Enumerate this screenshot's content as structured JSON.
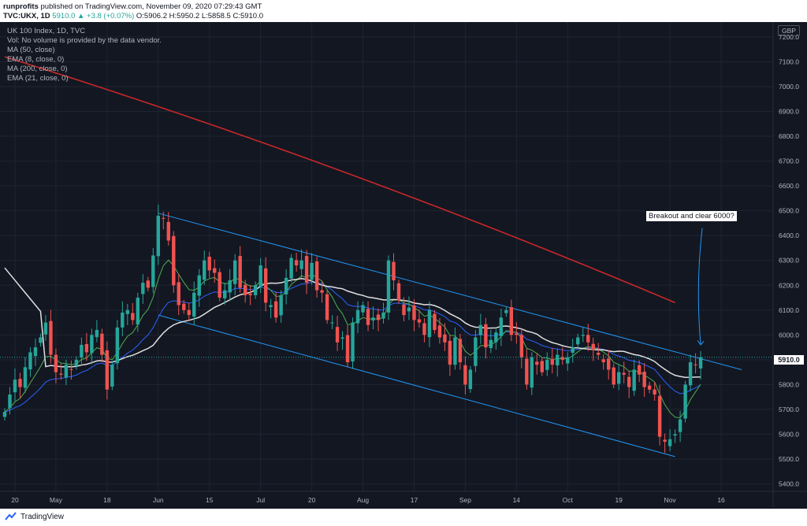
{
  "header": {
    "publisher": "runprofits",
    "published_text": "published on TradingView.com, November 09, 2020 07:29:43 GMT",
    "symbol_line": "TVC:UKX, 1D",
    "last": "5910.0",
    "change": "▲ +3.8 (+0.07%)",
    "open": "O:5906.2",
    "high": "H:5950.2",
    "low": "L:5858.5",
    "close": "C:5910.0"
  },
  "legend": {
    "title": "UK 100 Index, 1D, TVC",
    "vol": "Vol: No volume is provided by the data vendor.",
    "ma50": "MA (50, close)",
    "ema8": "EMA (8, close, 0)",
    "ma200": "MA (200, close, 0)",
    "ema21": "EMA (21, close, 0)"
  },
  "currency": "GBP",
  "current_price": "5910.0",
  "annotation": "Breakout and clear 6000?",
  "footer": {
    "brand": "TradingView"
  },
  "colors": {
    "background": "#131722",
    "grid": "#1f2433",
    "up": "#26a69a",
    "down": "#ef5350",
    "ma50": "#e0e0e0",
    "ema8": "#4caf50",
    "ma200": "#c62828",
    "ema21": "#2962ff",
    "channel": "#2196f3"
  },
  "chart_data": {
    "type": "candlestick",
    "y_range": [
      5370,
      7260
    ],
    "y_ticks": [
      5400,
      5500,
      5600,
      5700,
      5800,
      5900,
      6000,
      6100,
      6200,
      6300,
      6400,
      6500,
      6600,
      6700,
      6800,
      6900,
      7000,
      7100,
      7200
    ],
    "y_tick_labels": [
      "5400.0",
      "5500.0",
      "5600.0",
      "5700.0",
      "5800.0",
      "5900.0",
      "6000.0",
      "6100.0",
      "6200.0",
      "6300.0",
      "6400.0",
      "6500.0",
      "6600.0",
      "6700.0",
      "6800.0",
      "6900.0",
      "7000.0",
      "7100.0",
      "7200.0"
    ],
    "x_ticks": [
      {
        "label": "20",
        "i": 2
      },
      {
        "label": "May",
        "i": 10
      },
      {
        "label": "18",
        "i": 20
      },
      {
        "label": "Jun",
        "i": 30
      },
      {
        "label": "15",
        "i": 40
      },
      {
        "label": "Jul",
        "i": 50
      },
      {
        "label": "20",
        "i": 60
      },
      {
        "label": "Aug",
        "i": 70
      },
      {
        "label": "17",
        "i": 80
      },
      {
        "label": "Sep",
        "i": 90
      },
      {
        "label": "14",
        "i": 100
      },
      {
        "label": "Oct",
        "i": 110
      },
      {
        "label": "19",
        "i": 120
      },
      {
        "label": "Nov",
        "i": 130
      },
      {
        "label": "16",
        "i": 140
      }
    ],
    "x_count": 148,
    "closes": [
      5690,
      5760,
      5820,
      5790,
      5870,
      5930,
      5950,
      5990,
      6050,
      5920,
      5850,
      5840,
      5880,
      5860,
      5900,
      5960,
      5930,
      6000,
      6020,
      5920,
      5780,
      5880,
      6030,
      6090,
      6100,
      6060,
      6150,
      6210,
      6190,
      6320,
      6480,
      6470,
      6380,
      6200,
      6120,
      6100,
      6080,
      6170,
      6240,
      6300,
      6260,
      6250,
      6150,
      6180,
      6220,
      6300,
      6190,
      6160,
      6160,
      6200,
      6280,
      6130,
      6120,
      6070,
      6160,
      6230,
      6310,
      6280,
      6300,
      6210,
      6290,
      6180,
      6170,
      6060,
      6050,
      5970,
      5990,
      5890,
      6050,
      6100,
      6120,
      6040,
      6070,
      6060,
      6090,
      6300,
      6220,
      6140,
      6080,
      6110,
      6060,
      6050,
      6000,
      6100,
      6020,
      5990,
      5970,
      5880,
      5990,
      5890,
      5800,
      5860,
      5990,
      6040,
      5950,
      5980,
      6010,
      6070,
      6100,
      6000,
      6000,
      5910,
      5800,
      5910,
      5880,
      5850,
      5900,
      5880,
      5920,
      5900,
      5910,
      5950,
      5990,
      6000,
      5970,
      5940,
      5920,
      5890,
      5860,
      5800,
      5850,
      5840,
      5790,
      5860,
      5840,
      5790,
      5780,
      5760,
      5590,
      5570,
      5580,
      5600,
      5660,
      5800,
      5890,
      5880,
      5910
    ],
    "ma200_start": 7120,
    "ma200_end": 6130
  }
}
